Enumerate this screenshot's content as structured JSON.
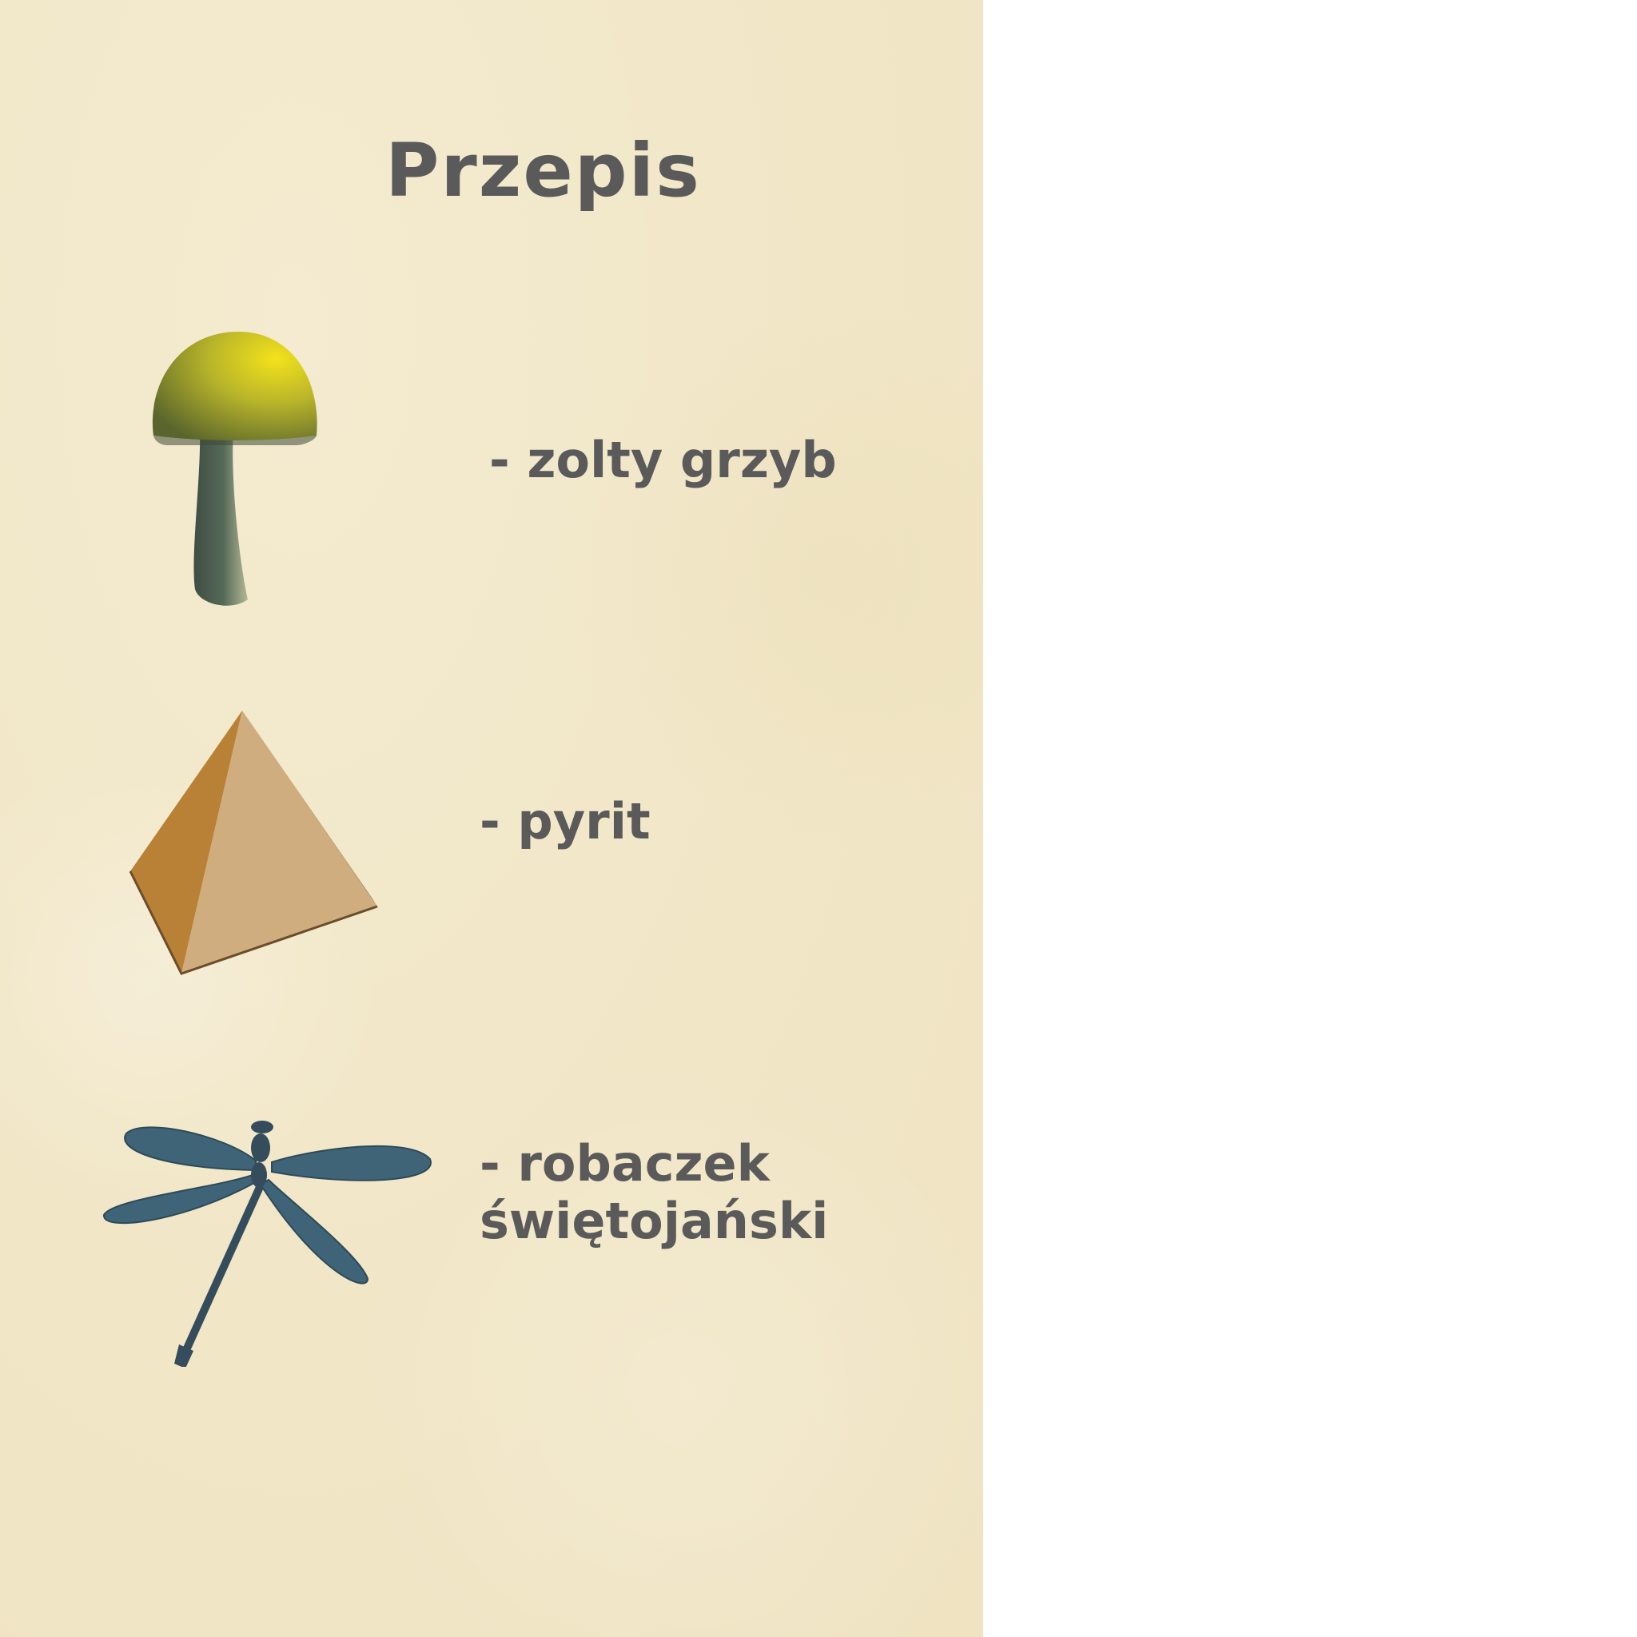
{
  "recipe": {
    "title": "Przepis",
    "items": [
      {
        "icon": "mushroom-icon",
        "label": "- zolty grzyb"
      },
      {
        "icon": "pyramid-icon",
        "label": "- pyrit"
      },
      {
        "icon": "dragonfly-icon",
        "label": "- robaczek świętojański"
      }
    ]
  },
  "colors": {
    "panel_background": "#f1e6c6",
    "text": "#5a5a5a",
    "mushroom_cap": "#c9c227",
    "mushroom_stem": "#4a5a4e",
    "pyramid": "#c9a06a",
    "dragonfly": "#3f6478"
  }
}
